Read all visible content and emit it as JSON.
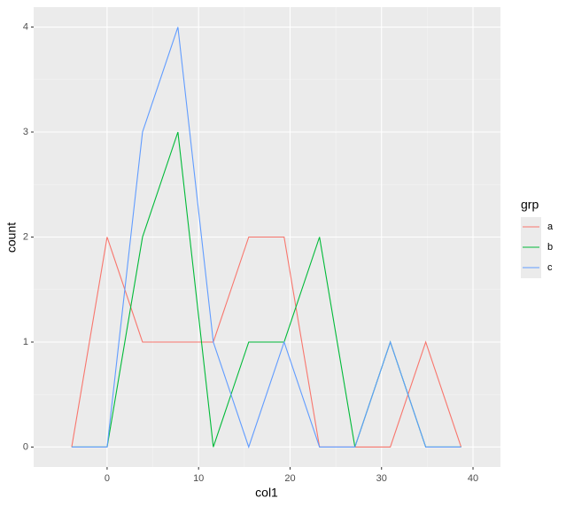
{
  "chart_data": {
    "type": "line",
    "x": [
      -3.87,
      0,
      3.87,
      7.74,
      11.61,
      15.48,
      19.35,
      23.22,
      27.09,
      30.96,
      34.83,
      38.7
    ],
    "series": [
      {
        "name": "a",
        "color": "#F8766D",
        "values": [
          0,
          2,
          1,
          1,
          1,
          2,
          2,
          0,
          0,
          0,
          1,
          0
        ]
      },
      {
        "name": "b",
        "color": "#00BA38",
        "values": [
          0,
          0,
          2,
          3,
          0,
          1,
          1,
          2,
          0,
          1,
          0,
          0
        ]
      },
      {
        "name": "c",
        "color": "#619CFF",
        "values": [
          0,
          0,
          3,
          4,
          1,
          0,
          1,
          0,
          0,
          1,
          0,
          0
        ]
      }
    ],
    "xlabel": "col1",
    "ylabel": "count",
    "legend_title": "grp",
    "xlim": [
      -8.03,
      43.0
    ],
    "xticks": [
      0,
      10,
      20,
      30,
      40
    ],
    "ylim": [
      -0.19,
      4.19
    ],
    "yticks": [
      0,
      1,
      2,
      3,
      4
    ],
    "grid": true,
    "legend": "right"
  }
}
